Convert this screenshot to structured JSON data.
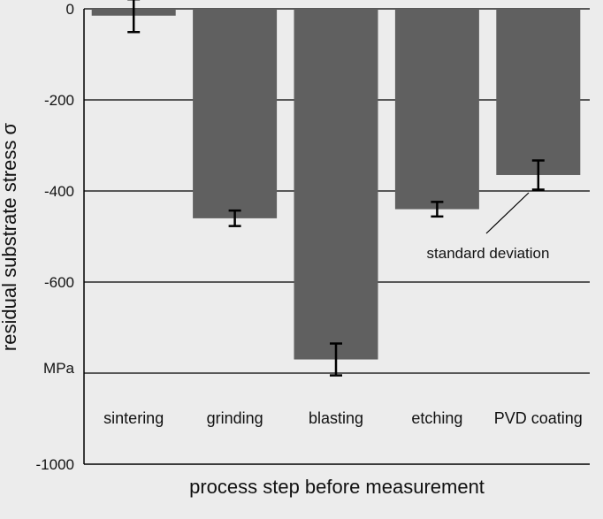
{
  "chart_data": {
    "type": "bar",
    "title": "",
    "xlabel": "process step before measurement",
    "ylabel": "residual substrate stress σ",
    "y_unit_label": "MPa",
    "ylim": [
      -1000,
      0
    ],
    "yticks": [
      0,
      -200,
      -400,
      -600,
      -1000
    ],
    "ytick_labels": [
      "0",
      "-200",
      "-400",
      "-600",
      "-1000"
    ],
    "grid": true,
    "categories": [
      "sintering",
      "grinding",
      "blasting",
      "etching",
      "PVD coating"
    ],
    "values": [
      -15,
      -460,
      -770,
      -440,
      -365
    ],
    "error": [
      36,
      17,
      35,
      16,
      32
    ],
    "annotation": "standard deviation",
    "bar_color": "#606060"
  }
}
